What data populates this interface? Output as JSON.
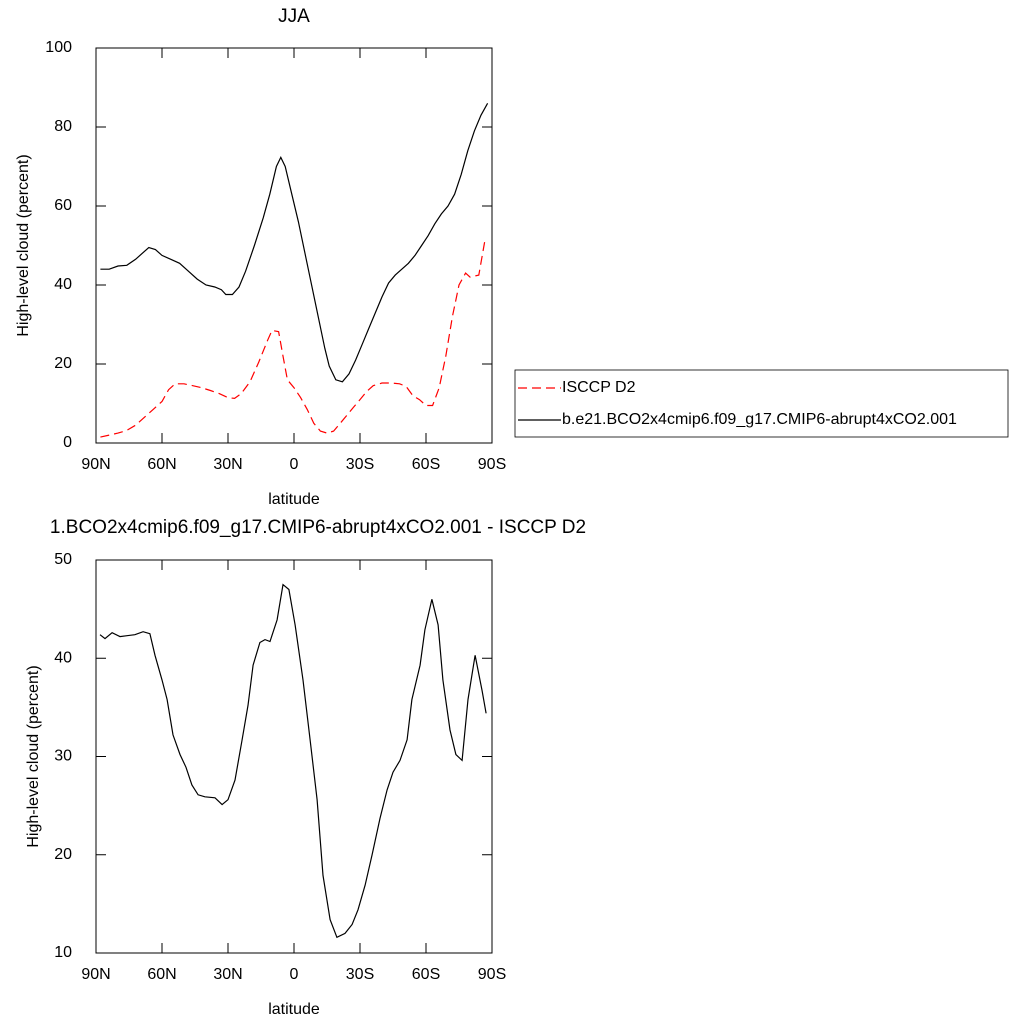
{
  "chart_data": [
    {
      "type": "line",
      "title": "JJA",
      "x_label": "latitude",
      "y_label": "High-level cloud (percent)",
      "xlim": [
        90,
        -90
      ],
      "ylim": [
        0,
        100
      ],
      "xticks": [
        {
          "value": 90,
          "label": "90N"
        },
        {
          "value": 60,
          "label": "60N"
        },
        {
          "value": 30,
          "label": "30N"
        },
        0,
        {
          "value": -30,
          "label": "30S"
        },
        {
          "value": -60,
          "label": "60S"
        },
        {
          "value": -90,
          "label": "90S"
        }
      ],
      "yticks": [
        0,
        20,
        40,
        60,
        80,
        100
      ],
      "legend_position": "right",
      "series": [
        {
          "name": "ISCCP D2",
          "color": "#ff0000",
          "style": "dashed",
          "x": [
            88,
            84,
            80,
            76,
            72,
            68,
            64,
            60,
            57,
            54,
            50,
            46,
            42,
            38,
            34,
            30,
            27,
            24,
            20,
            16,
            12,
            10,
            7,
            5,
            3,
            0,
            -3,
            -6,
            -9,
            -12,
            -15,
            -18,
            -21,
            -24,
            -27,
            -30,
            -33,
            -36,
            -40,
            -44,
            -48,
            -51,
            -54,
            -57,
            -60,
            -63,
            -66,
            -69,
            -72,
            -75,
            -78,
            -80,
            -84,
            -87
          ],
          "values": [
            1.5,
            2,
            2.5,
            3.2,
            4.5,
            6.5,
            8.5,
            10.5,
            13.5,
            15,
            15,
            14.5,
            14,
            13.3,
            12.5,
            11.5,
            11.3,
            12.5,
            15.5,
            20.5,
            26,
            28.5,
            28.2,
            22,
            16,
            14,
            11.5,
            8.5,
            5,
            3,
            2.5,
            3,
            5,
            7,
            9,
            11,
            13,
            14.5,
            15.2,
            15.2,
            15,
            14.3,
            12,
            11,
            9.5,
            9.5,
            14,
            22,
            32,
            40,
            43,
            42,
            42.5,
            52
          ]
        },
        {
          "name": "b.e21.BCO2x4cmip6.f09_g17.CMIP6-abrupt4xCO2.001",
          "color": "#000000",
          "style": "solid",
          "x": [
            88,
            84,
            80,
            76,
            72,
            68,
            66,
            63,
            60,
            56,
            52,
            48,
            44,
            40,
            36,
            33,
            31,
            28,
            25,
            22,
            18,
            14,
            11,
            8,
            6,
            4,
            1,
            -2,
            -5,
            -8,
            -11,
            -14,
            -16,
            -19,
            -22,
            -25,
            -28,
            -31,
            -34,
            -37,
            -40,
            -43,
            -46,
            -49,
            -52,
            -55,
            -58,
            -61,
            -64,
            -67,
            -70,
            -73,
            -76,
            -79,
            -82,
            -85,
            -88
          ],
          "values": [
            44,
            44,
            44.8,
            45,
            46.5,
            48.5,
            49.5,
            49,
            47.5,
            46.5,
            45.5,
            43.5,
            41.5,
            40,
            39.5,
            38.8,
            37.6,
            37.6,
            39.5,
            43.5,
            50,
            57,
            63,
            70,
            72.3,
            70,
            63,
            56,
            48,
            40,
            32,
            24,
            19.5,
            16,
            15.5,
            17.5,
            21,
            25,
            29,
            33,
            37,
            40.5,
            42.5,
            44,
            45.5,
            47.5,
            50,
            52.5,
            55.5,
            58,
            60,
            63,
            68,
            74,
            79,
            83,
            86
          ]
        }
      ]
    },
    {
      "type": "line",
      "title": "1.BCO2x4cmip6.f09_g17.CMIP6-abrupt4xCO2.001 - ISCCP D2",
      "x_label": "latitude",
      "y_label": "High-level cloud (percent)",
      "xlim": [
        90,
        -90
      ],
      "ylim": [
        10,
        50
      ],
      "xticks": [
        {
          "value": 90,
          "label": "90N"
        },
        {
          "value": 60,
          "label": "60N"
        },
        {
          "value": 30,
          "label": "30N"
        },
        0,
        {
          "value": -30,
          "label": "30S"
        },
        {
          "value": -60,
          "label": "60S"
        },
        {
          "value": -90,
          "label": "90S"
        }
      ],
      "yticks": [
        10,
        20,
        30,
        40,
        50
      ],
      "series": [
        {
          "color": "#000000",
          "style": "solid",
          "x": [
            88.2,
            85.9,
            82.7,
            79.1,
            72.3,
            68.6,
            65.5,
            63.2,
            60,
            57.7,
            55,
            51.8,
            49.1,
            46.4,
            43.6,
            40.5,
            35.9,
            32.7,
            30,
            26.8,
            23.6,
            20.9,
            18.6,
            15.5,
            13.2,
            10.9,
            7.7,
            5,
            2.3,
            -0.5,
            -4.1,
            -7.3,
            -10.5,
            -13.2,
            -16.4,
            -19.5,
            -23.2,
            -26.4,
            -29.1,
            -32.3,
            -35.5,
            -39.1,
            -42.3,
            -45,
            -48.2,
            -51.4,
            -53.6,
            -57.3,
            -59.5,
            -62.7,
            -65.5,
            -67.7,
            -70.9,
            -73.6,
            -76.4,
            -79.1,
            -82.3,
            -85.5,
            -87.3
          ],
          "values": [
            42.4,
            42,
            42.6,
            42.2,
            42.4,
            42.7,
            42.5,
            40.3,
            37.8,
            35.8,
            32.2,
            30.2,
            28.9,
            27.1,
            26.1,
            25.9,
            25.8,
            25.1,
            25.6,
            27.6,
            31.7,
            35.2,
            39.3,
            41.6,
            41.9,
            41.7,
            43.9,
            47.5,
            47,
            43.4,
            37.8,
            31.7,
            25.6,
            17.9,
            13.4,
            11.6,
            12,
            12.9,
            14.4,
            16.9,
            20,
            23.7,
            26.6,
            28.4,
            29.6,
            31.7,
            35.8,
            39.3,
            42.9,
            46,
            43.4,
            37.8,
            32.7,
            30.2,
            29.6,
            35.8,
            40.3,
            36.7,
            34.4
          ]
        }
      ]
    }
  ]
}
